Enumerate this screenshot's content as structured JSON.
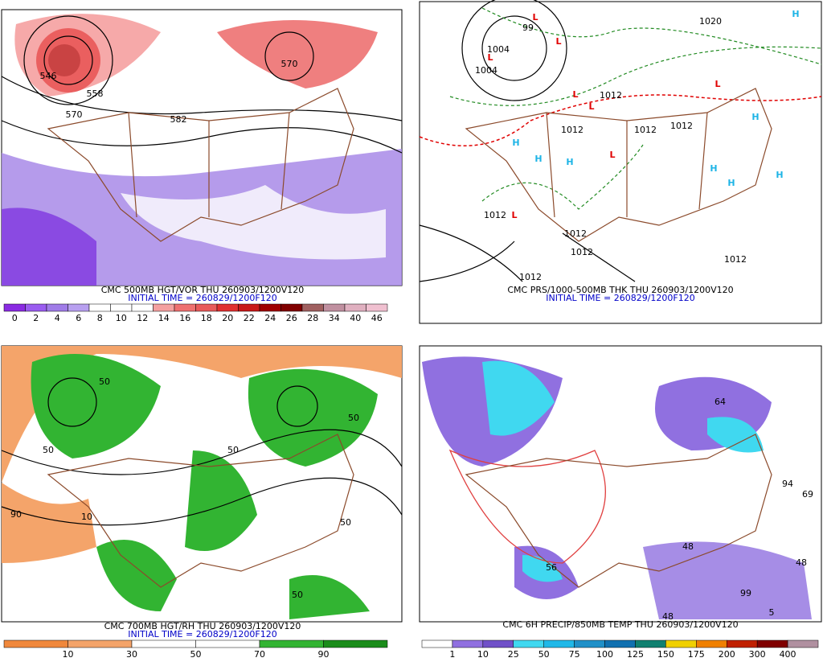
{
  "panels": [
    {
      "title": "CMC 500MB HGT/VOR THU 260903/1200V120",
      "initial_time": "INITIAL TIME = 260829/1200F120",
      "colorbar": {
        "labels": [
          "0",
          "2",
          "4",
          "6",
          "8",
          "10",
          "12",
          "14",
          "16",
          "18",
          "20",
          "22",
          "24",
          "26",
          "28",
          "34",
          "40",
          "46"
        ],
        "colors": [
          "#8a2be2",
          "#9a5cf0",
          "#a07ce8",
          "#b8a0f0",
          "#ffffff",
          "#ffffff",
          "#ffffff",
          "#f4a0a0",
          "#ee7070",
          "#e85a5a",
          "#e03030",
          "#c81818",
          "#a00000",
          "#800000",
          "#a06060",
          "#c090a0",
          "#e0b0c0",
          "#f0c0d0"
        ]
      },
      "map_labels": [
        "570",
        "582",
        "558",
        "570",
        "546"
      ]
    },
    {
      "title": "CMC PRS/1000-500MB THK THU 260903/1200V120",
      "initial_time": "INITIAL TIME = 260829/1200F120",
      "map_labels": [
        "1020",
        "1004",
        "1004",
        "1012",
        "1012",
        "1012",
        "1012",
        "1012",
        "1012",
        "1012",
        "1012",
        "1012",
        "99"
      ],
      "centers": [
        "L",
        "L",
        "L",
        "L",
        "L",
        "L",
        "L",
        "L",
        "H",
        "H",
        "H",
        "H",
        "H",
        "H",
        "H",
        "H"
      ]
    },
    {
      "title": "CMC 700MB HGT/RH THU 260903/1200V120",
      "initial_time": "INITIAL TIME = 260829/1200F120",
      "colorbar": {
        "labels": [
          "10",
          "30",
          "50",
          "70",
          "90"
        ],
        "colors": [
          "#f0883c",
          "#f4a46a",
          "#ffffff",
          "#ffffff",
          "#32b432",
          "#1a8c1a"
        ]
      },
      "map_labels": [
        "50",
        "50",
        "50",
        "50",
        "90",
        "10",
        "50",
        "50"
      ]
    },
    {
      "title": "CMC 6H PRECIP/850MB TEMP THU 260903/1200V120",
      "colorbar": {
        "labels": [
          "1",
          "10",
          "25",
          "50",
          "75",
          "100",
          "125",
          "150",
          "175",
          "200",
          "300",
          "400"
        ],
        "colors": [
          "#ffffff",
          "#9070e0",
          "#7050c8",
          "#40d8f0",
          "#20b8e8",
          "#2090c8",
          "#1070b0",
          "#108070",
          "#f0d000",
          "#f08000",
          "#c02000",
          "#800000",
          "#b090a0"
        ]
      },
      "map_labels": [
        "64",
        "94",
        "69",
        "48",
        "56",
        "48",
        "48",
        "99",
        "5"
      ]
    }
  ]
}
